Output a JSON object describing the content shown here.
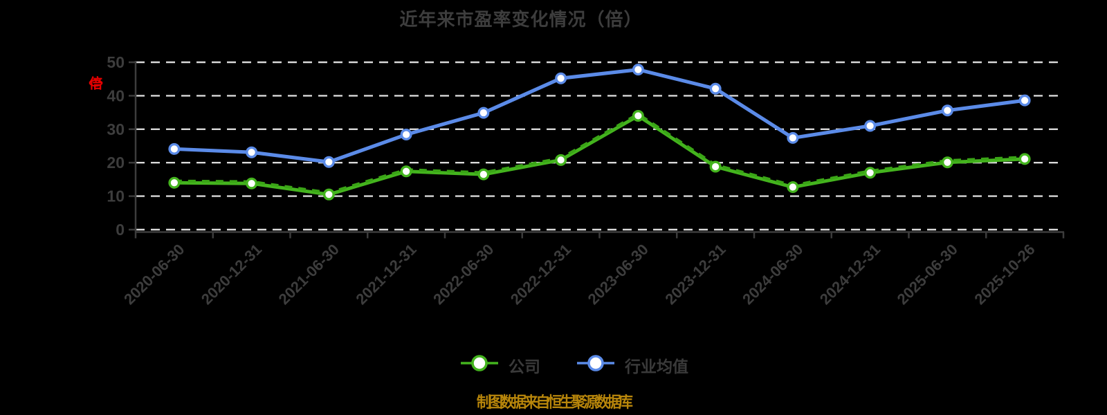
{
  "title": "近年来市盈率变化情况（倍）",
  "y_axis_label": "（倍）",
  "caption": "制图数据来自恒生聚源数据库",
  "colors": {
    "background": "#000000",
    "title_text": "#3d3d3d",
    "axis": "#3c3c3c",
    "tick_text": "#3d3d3d",
    "grid": "#d9d9d9",
    "marker_fill": "#ffffff",
    "y_label_red": "#e60000",
    "caption_gold": "#b8860b",
    "legend_text": "#3a3a3a"
  },
  "chart_data": {
    "type": "line",
    "title": "近年来市盈率变化情况（倍）",
    "xlabel": "",
    "ylabel": "（倍）",
    "ylim": [
      0,
      50
    ],
    "yticks": [
      0,
      10,
      20,
      30,
      40,
      50
    ],
    "grid": "horizontal-dashed-white",
    "legend_position": "bottom",
    "categories": [
      "2020-06-30",
      "2020-12-31",
      "2021-06-30",
      "2021-12-31",
      "2022-06-30",
      "2022-12-31",
      "2023-06-30",
      "2023-12-31",
      "2024-06-30",
      "2024-12-31",
      "2025-06-30",
      "2025-10-26"
    ],
    "series": [
      {
        "name": "公司",
        "color": "#44b41e",
        "dash_overlay_color": "#3aa516",
        "values": [
          14.0,
          13.8,
          10.5,
          17.4,
          16.5,
          20.8,
          34.0,
          18.8,
          12.7,
          17.0,
          20.1,
          21.1
        ]
      },
      {
        "name": "行业均值",
        "color": "#5b8be8",
        "values": [
          24.1,
          23.1,
          20.2,
          28.4,
          34.9,
          45.2,
          47.8,
          42.1,
          27.4,
          31.0,
          35.6,
          38.6
        ]
      }
    ]
  }
}
